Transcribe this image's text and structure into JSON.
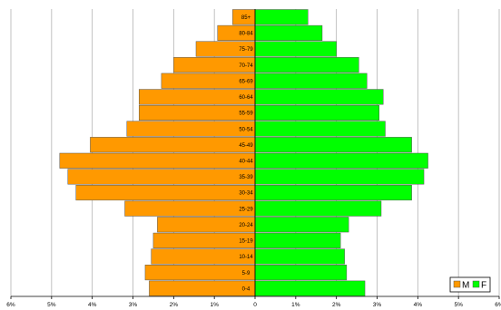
{
  "chart_data": {
    "type": "bar",
    "orientation": "horizontal",
    "subtype": "population-pyramid",
    "categories": [
      "0-4",
      "5-9",
      "10-14",
      "15-19",
      "20-24",
      "25-29",
      "30-34",
      "35-39",
      "40-44",
      "45-49",
      "50-54",
      "55-59",
      "60-64",
      "65-69",
      "70-74",
      "75-79",
      "80-84",
      "85+"
    ],
    "series": [
      {
        "name": "M",
        "color": "#FF9900",
        "side": "left",
        "values": [
          2.6,
          2.7,
          2.55,
          2.5,
          2.4,
          3.2,
          4.4,
          4.6,
          4.8,
          4.05,
          3.15,
          2.85,
          2.85,
          2.3,
          2.0,
          1.45,
          0.92,
          0.55
        ]
      },
      {
        "name": "F",
        "color": "#00FF00",
        "side": "right",
        "values": [
          2.7,
          2.25,
          2.2,
          2.1,
          2.3,
          3.1,
          3.85,
          4.15,
          4.25,
          3.85,
          3.2,
          3.05,
          3.15,
          2.75,
          2.55,
          2.0,
          1.65,
          1.3
        ]
      }
    ],
    "xlim": [
      -6,
      6
    ],
    "x_tick_labels": [
      "6%",
      "5%",
      "4%",
      "3%",
      "2%",
      "1%",
      "0",
      "1%",
      "2%",
      "3%",
      "4%",
      "5%",
      "6%"
    ],
    "grid": true,
    "legend": {
      "position": "bottom-right",
      "entries": [
        "M",
        "F"
      ]
    },
    "title": "",
    "xlabel": "",
    "ylabel": ""
  }
}
